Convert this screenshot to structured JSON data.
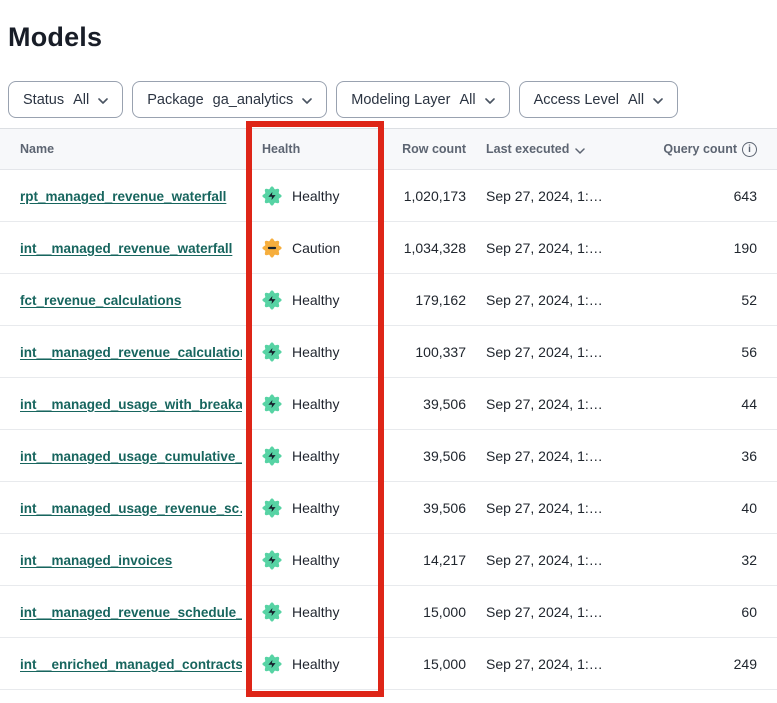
{
  "page": {
    "title": "Models"
  },
  "filters": [
    {
      "label": "Status",
      "value": "All"
    },
    {
      "label": "Package",
      "value": "ga_analytics"
    },
    {
      "label": "Modeling Layer",
      "value": "All"
    },
    {
      "label": "Access Level",
      "value": "All"
    }
  ],
  "table": {
    "columns": {
      "name": "Name",
      "health": "Health",
      "row_count": "Row count",
      "last_executed": "Last executed",
      "query_count": "Query count"
    },
    "rows": [
      {
        "name": "rpt_managed_revenue_waterfall",
        "health": "Healthy",
        "row_count": "1,020,173",
        "last_executed": "Sep 27, 2024, 1:…",
        "query_count": "643"
      },
      {
        "name": "int__managed_revenue_waterfall",
        "health": "Caution",
        "row_count": "1,034,328",
        "last_executed": "Sep 27, 2024, 1:…",
        "query_count": "190"
      },
      {
        "name": "fct_revenue_calculations",
        "health": "Healthy",
        "row_count": "179,162",
        "last_executed": "Sep 27, 2024, 1:…",
        "query_count": "52"
      },
      {
        "name": "int__managed_revenue_calculations",
        "health": "Healthy",
        "row_count": "100,337",
        "last_executed": "Sep 27, 2024, 1:…",
        "query_count": "56"
      },
      {
        "name": "int__managed_usage_with_breaka…",
        "health": "Healthy",
        "row_count": "39,506",
        "last_executed": "Sep 27, 2024, 1:…",
        "query_count": "44"
      },
      {
        "name": "int__managed_usage_cumulative_…",
        "health": "Healthy",
        "row_count": "39,506",
        "last_executed": "Sep 27, 2024, 1:…",
        "query_count": "36"
      },
      {
        "name": "int__managed_usage_revenue_sc…",
        "health": "Healthy",
        "row_count": "39,506",
        "last_executed": "Sep 27, 2024, 1:…",
        "query_count": "40"
      },
      {
        "name": "int__managed_invoices",
        "health": "Healthy",
        "row_count": "14,217",
        "last_executed": "Sep 27, 2024, 1:…",
        "query_count": "32"
      },
      {
        "name": "int__managed_revenue_schedule_…",
        "health": "Healthy",
        "row_count": "15,000",
        "last_executed": "Sep 27, 2024, 1:…",
        "query_count": "60"
      },
      {
        "name": "int__enriched_managed_contracts",
        "health": "Healthy",
        "row_count": "15,000",
        "last_executed": "Sep 27, 2024, 1:…",
        "query_count": "249"
      }
    ]
  },
  "icons": {
    "info": "i"
  },
  "annotation": {
    "highlighted_column": "Health"
  },
  "colors": {
    "healthy": "#57d3a4",
    "caution": "#f6ae3d",
    "badge_glyph": "#15202b",
    "link": "#17655e",
    "annotation_red": "#de2517"
  }
}
